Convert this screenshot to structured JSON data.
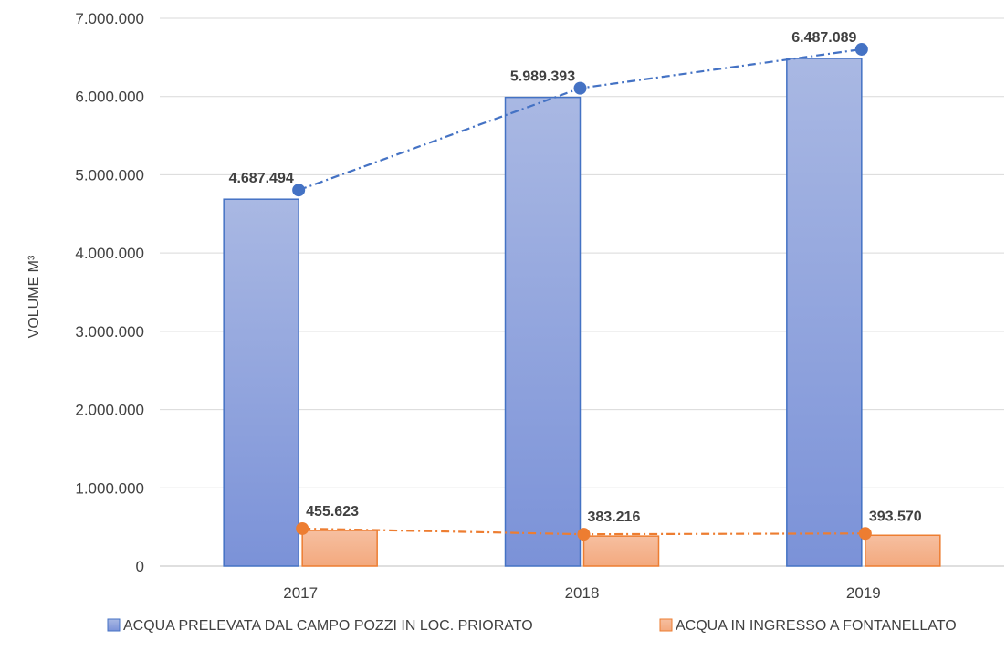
{
  "chart_data": {
    "type": "bar",
    "categories": [
      "2017",
      "2018",
      "2019"
    ],
    "series": [
      {
        "name": "ACQUA PRELEVATA DAL CAMPO POZZI IN LOC. PRIORATO",
        "values": [
          4687494,
          5989393,
          6487089
        ],
        "labels": [
          "4.687.494",
          "5.989.393",
          "6.487.089"
        ],
        "color": "#8FA3DC",
        "trend_color": "#4472C4"
      },
      {
        "name": "ACQUA IN INGRESSO A FONTANELLATO",
        "values": [
          455623,
          383216,
          393570
        ],
        "labels": [
          "455.623",
          "383.216",
          "393.570"
        ],
        "color": "#F4B183",
        "trend_color": "#ED7D31"
      }
    ],
    "title": "",
    "xlabel": "",
    "ylabel": "VOLUME M³",
    "ylim": [
      0,
      7000000
    ],
    "yticks": [
      0,
      1000000,
      2000000,
      3000000,
      4000000,
      5000000,
      6000000,
      7000000
    ],
    "ytick_labels": [
      "0",
      "1.000.000",
      "2.000.000",
      "3.000.000",
      "4.000.000",
      "5.000.000",
      "6.000.000",
      "7.000.000"
    ],
    "grid": true,
    "legend": "bottom"
  }
}
